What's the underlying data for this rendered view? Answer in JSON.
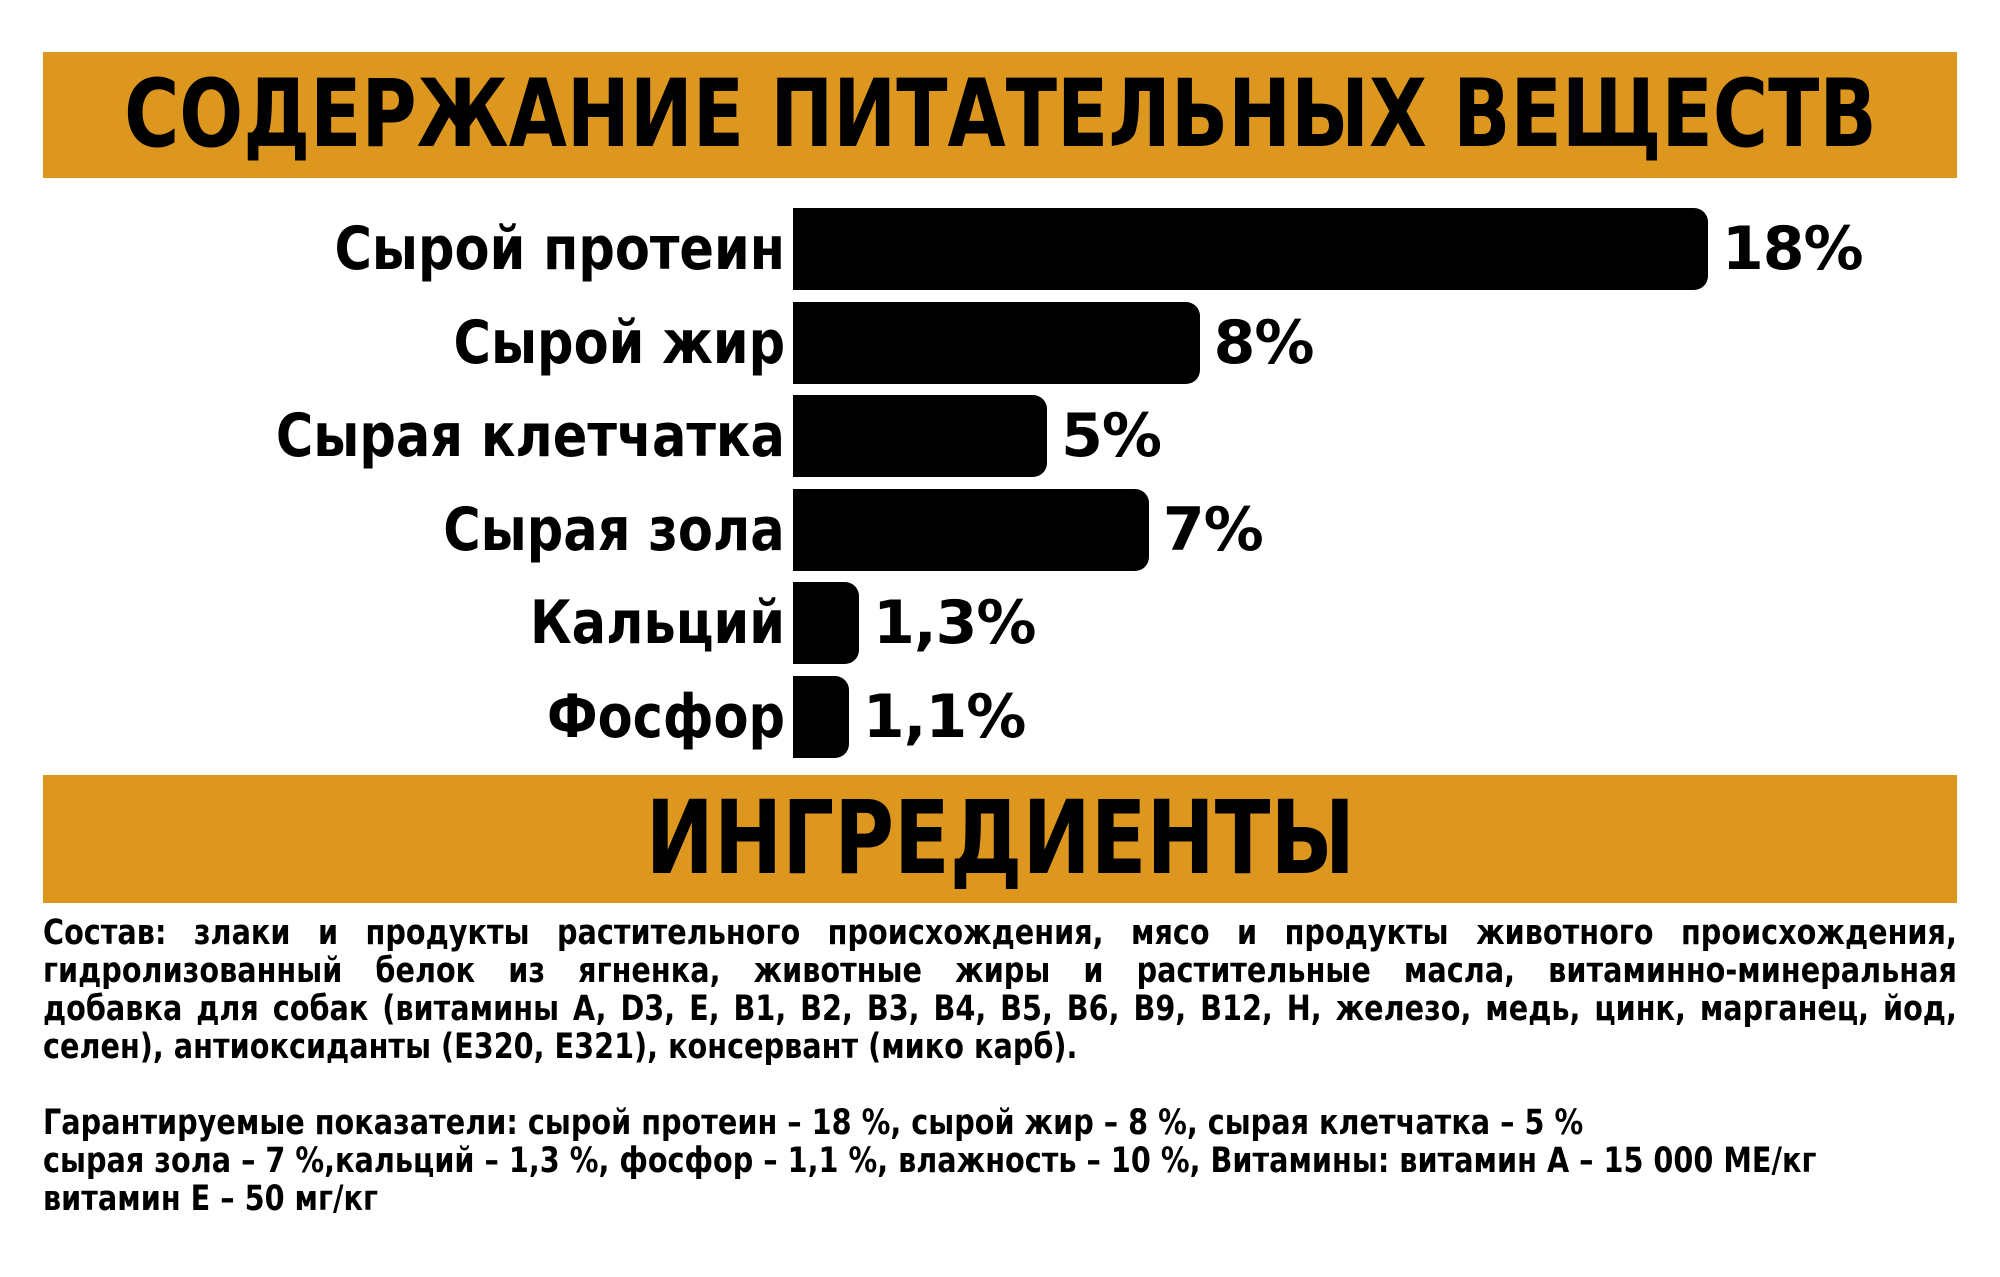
{
  "colors": {
    "accent": "#DD971F",
    "bar": "#000000",
    "text": "#000000",
    "background": "#FFFFFF"
  },
  "header_banner": {
    "title": "СОДЕРЖАНИЕ ПИТАТЕЛЬНЫХ ВЕЩЕСТВ"
  },
  "chart_data": {
    "type": "bar",
    "orientation": "horizontal",
    "title": "СОДЕРЖАНИЕ ПИТАТЕЛЬНЫХ ВЕЩЕСТВ",
    "categories": [
      "Сырой протеин",
      "Сырой жир",
      "Сырая клетчатка",
      "Сырая зола",
      "Кальций",
      "Фосфор"
    ],
    "values": [
      18,
      8,
      5,
      7,
      1.3,
      1.1
    ],
    "value_labels": [
      "18%",
      "8%",
      "5%",
      "7%",
      "1,3%",
      "1,1%"
    ],
    "unit": "%",
    "xlim": [
      0,
      18
    ],
    "bar_color": "#000000",
    "grid": false,
    "legend": false
  },
  "ingredients_banner": {
    "title": "ИНГРЕДИЕНТЫ"
  },
  "composition": {
    "lines": [
      "Состав: злаки и продукты растительного происхождения, мясо и продукты животного происхождения,",
      "гидролизованный белок из ягненка, животные жиры и растительные масла, витаминно-минеральная",
      "добавка для собак (витамины A, D3, E, B1, B2, B3, B4, B5, B6, B9, B12, H, железо, медь, цинк, марганец, йод,",
      "селен), антиоксиданты (Е320, Е321), консервант (мико карб)."
    ]
  },
  "guaranteed_analysis": {
    "lines": [
      "Гарантируемые показатели: сырой протеин – 18 %, сырой жир – 8 %, сырая клетчатка – 5 %",
      "сырая зола – 7 %,кальций – 1,3 %, фосфор – 1,1 %, влажность – 10 %, Витамины: витамин А – 15 000 МЕ/кг",
      "витамин Е – 50 мг/кг"
    ]
  }
}
